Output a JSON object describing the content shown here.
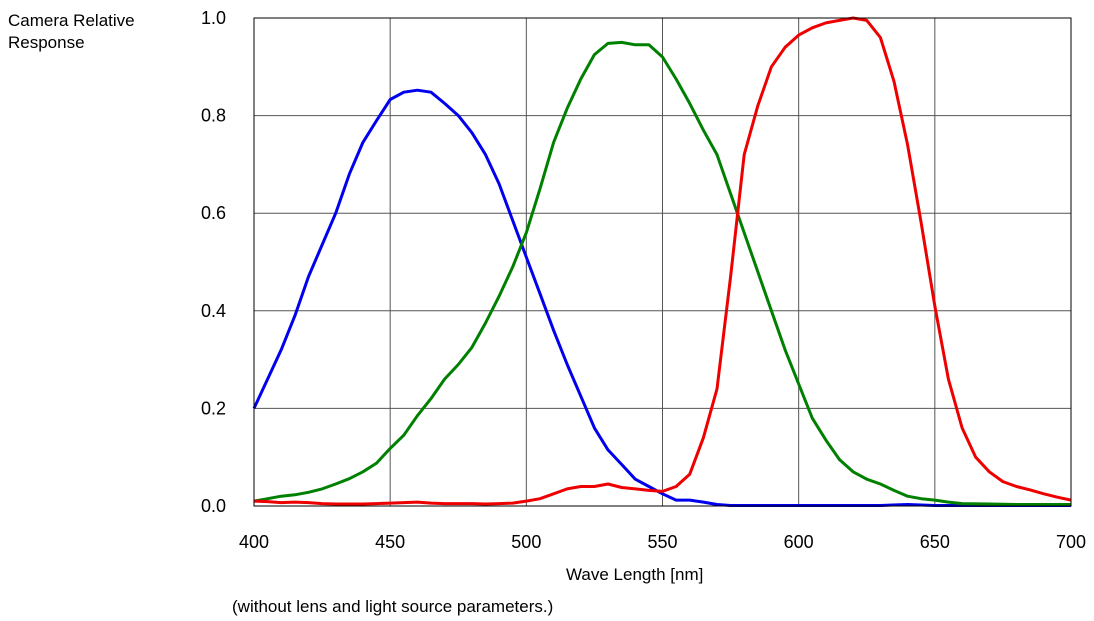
{
  "chart_data": {
    "type": "line",
    "ylabel": "Camera Relative\nResponse",
    "ylabel_lines": [
      "Camera Relative",
      "Response"
    ],
    "xlabel": "Wave Length [nm]",
    "note": "(without lens and light source parameters.)",
    "xlim": [
      400,
      700
    ],
    "ylim": [
      0,
      1.0
    ],
    "xticks": [
      "400",
      "450",
      "500",
      "550",
      "600",
      "650",
      "700"
    ],
    "yticks": [
      "0.0",
      "0.2",
      "0.4",
      "0.6",
      "0.8",
      "1.0"
    ],
    "grid": true,
    "series": [
      {
        "color": "#0000ee",
        "x": [
          400,
          405,
          410,
          415,
          420,
          425,
          430,
          435,
          440,
          445,
          450,
          455,
          460,
          465,
          470,
          475,
          480,
          485,
          490,
          495,
          500,
          505,
          510,
          515,
          520,
          525,
          530,
          535,
          540,
          545,
          550,
          555,
          560,
          565,
          570,
          575,
          580,
          590,
          600,
          610,
          620,
          630,
          640,
          650,
          660,
          670,
          680,
          690,
          700
        ],
        "y": [
          0.2,
          0.26,
          0.32,
          0.39,
          0.47,
          0.535,
          0.6,
          0.68,
          0.745,
          0.79,
          0.833,
          0.848,
          0.852,
          0.848,
          0.825,
          0.8,
          0.765,
          0.72,
          0.66,
          0.585,
          0.51,
          0.435,
          0.36,
          0.29,
          0.225,
          0.16,
          0.115,
          0.085,
          0.055,
          0.04,
          0.025,
          0.012,
          0.012,
          0.008,
          0.003,
          0.001,
          0.001,
          0.001,
          0.001,
          0.001,
          0.001,
          0.001,
          0.003,
          0.001,
          0.001,
          0.001,
          0.001,
          0.001,
          0.001
        ]
      },
      {
        "color": "#008000",
        "x": [
          400,
          405,
          410,
          415,
          420,
          425,
          430,
          435,
          440,
          445,
          450,
          455,
          460,
          465,
          470,
          475,
          480,
          485,
          490,
          495,
          500,
          505,
          510,
          515,
          520,
          525,
          530,
          535,
          540,
          545,
          550,
          555,
          560,
          565,
          570,
          575,
          580,
          585,
          590,
          595,
          600,
          605,
          610,
          615,
          620,
          625,
          630,
          635,
          640,
          645,
          650,
          655,
          660,
          670,
          680,
          690,
          700
        ],
        "y": [
          0.01,
          0.015,
          0.02,
          0.023,
          0.028,
          0.035,
          0.045,
          0.056,
          0.07,
          0.088,
          0.118,
          0.145,
          0.185,
          0.22,
          0.26,
          0.29,
          0.325,
          0.375,
          0.43,
          0.49,
          0.56,
          0.65,
          0.745,
          0.815,
          0.875,
          0.925,
          0.948,
          0.95,
          0.945,
          0.945,
          0.92,
          0.875,
          0.825,
          0.77,
          0.72,
          0.64,
          0.56,
          0.48,
          0.4,
          0.32,
          0.25,
          0.18,
          0.135,
          0.095,
          0.07,
          0.055,
          0.045,
          0.032,
          0.02,
          0.015,
          0.012,
          0.008,
          0.005,
          0.004,
          0.003,
          0.003,
          0.003
        ]
      },
      {
        "color": "#ee0000",
        "x": [
          400,
          405,
          410,
          415,
          420,
          425,
          430,
          435,
          440,
          445,
          450,
          455,
          460,
          465,
          470,
          475,
          480,
          485,
          490,
          495,
          500,
          505,
          510,
          515,
          520,
          525,
          530,
          535,
          540,
          545,
          550,
          555,
          560,
          565,
          570,
          575,
          580,
          585,
          590,
          595,
          600,
          605,
          610,
          615,
          620,
          625,
          630,
          635,
          640,
          645,
          650,
          655,
          660,
          665,
          670,
          675,
          680,
          685,
          690,
          695,
          700
        ],
        "y": [
          0.01,
          0.009,
          0.007,
          0.008,
          0.007,
          0.005,
          0.004,
          0.004,
          0.004,
          0.005,
          0.006,
          0.007,
          0.008,
          0.006,
          0.005,
          0.005,
          0.005,
          0.004,
          0.005,
          0.006,
          0.01,
          0.015,
          0.025,
          0.035,
          0.04,
          0.04,
          0.045,
          0.038,
          0.035,
          0.032,
          0.03,
          0.04,
          0.065,
          0.14,
          0.24,
          0.47,
          0.72,
          0.82,
          0.9,
          0.94,
          0.965,
          0.98,
          0.99,
          0.995,
          1.0,
          0.995,
          0.96,
          0.87,
          0.74,
          0.58,
          0.41,
          0.26,
          0.16,
          0.1,
          0.07,
          0.05,
          0.04,
          0.033,
          0.025,
          0.018,
          0.012
        ]
      }
    ]
  }
}
